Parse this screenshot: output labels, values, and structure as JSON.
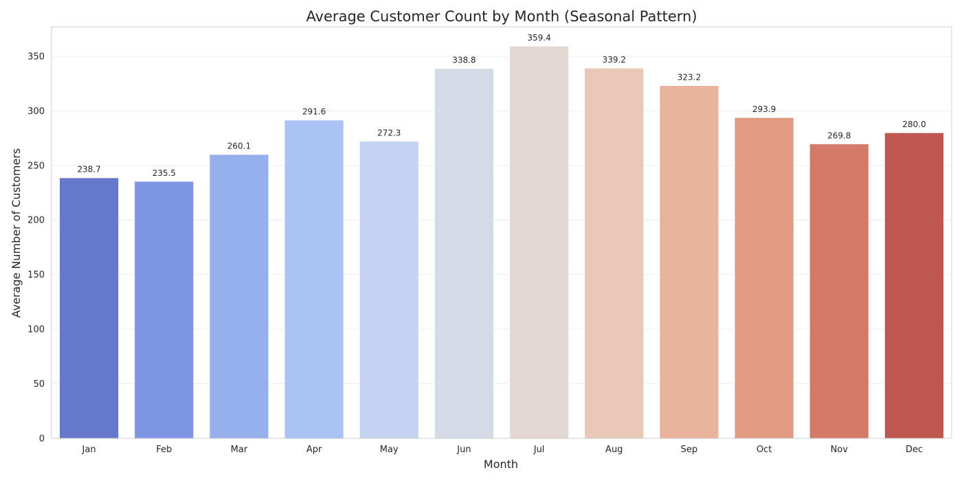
{
  "chart_data": {
    "type": "bar",
    "title": "Average Customer Count by Month (Seasonal Pattern)",
    "xlabel": "Month",
    "ylabel": "Average Number of Customers",
    "categories": [
      "Jan",
      "Feb",
      "Mar",
      "Apr",
      "May",
      "Jun",
      "Jul",
      "Aug",
      "Sep",
      "Oct",
      "Nov",
      "Dec"
    ],
    "values": [
      238.7,
      235.5,
      260.1,
      291.6,
      272.3,
      338.8,
      359.4,
      339.2,
      323.2,
      293.9,
      269.8,
      280.0
    ],
    "value_labels": [
      "238.7",
      "235.5",
      "260.1",
      "291.6",
      "272.3",
      "338.8",
      "359.4",
      "339.2",
      "323.2",
      "293.9",
      "269.8",
      "280.0"
    ],
    "colors": [
      "#6578cc",
      "#7d95e2",
      "#96afed",
      "#abc2f4",
      "#c4d3f1",
      "#d4dbe6",
      "#e3d8d3",
      "#eac8b7",
      "#eab39d",
      "#e29b81",
      "#d47a68",
      "#bd574f"
    ],
    "ylim": [
      0,
      377
    ],
    "yticks": [
      0,
      50,
      100,
      150,
      200,
      250,
      300,
      350
    ],
    "ytick_labels": [
      "0",
      "50",
      "100",
      "150",
      "200",
      "250",
      "300",
      "350"
    ],
    "grid": "y",
    "legend": "none"
  }
}
